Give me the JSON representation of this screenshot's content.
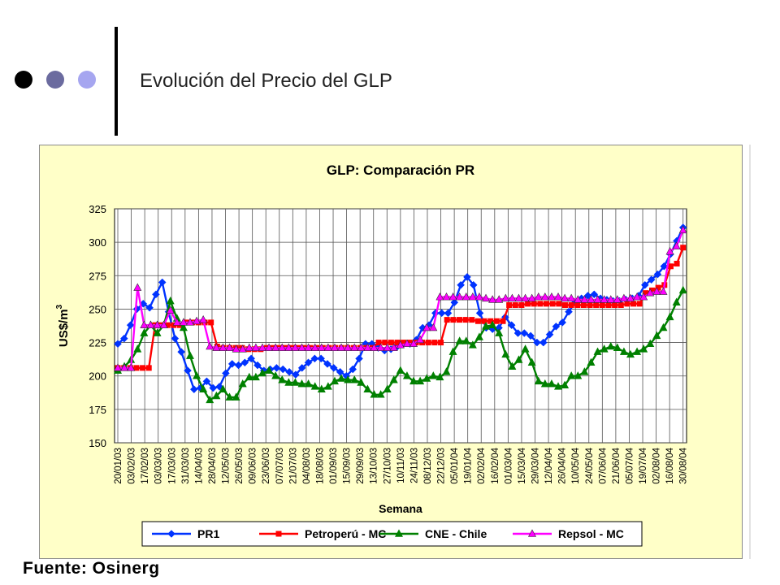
{
  "slide": {
    "title": "Evolución del Precio del GLP",
    "source": "Fuente: Osinerg",
    "bullet_colors": [
      "#000000",
      "#6b6b9f",
      "#a6a6f0"
    ]
  },
  "chart_data": {
    "type": "line",
    "title": "GLP: Comparación PR",
    "xlabel": "Semana",
    "ylabel": "US$/m",
    "ylabel_superscript": "3",
    "ylim": [
      150,
      325
    ],
    "yticks": [
      150,
      175,
      200,
      225,
      250,
      275,
      300,
      325
    ],
    "grid": true,
    "legend_position": "bottom",
    "plot_background": "#ffffc8",
    "x_tick_labels": [
      "20/01/03",
      "03/02/03",
      "17/02/03",
      "03/03/03",
      "17/03/03",
      "31/03/03",
      "14/04/03",
      "28/04/03",
      "12/05/03",
      "26/05/03",
      "09/06/03",
      "23/06/03",
      "07/07/03",
      "21/07/03",
      "04/08/03",
      "18/08/03",
      "01/09/03",
      "15/09/03",
      "29/09/03",
      "13/10/03",
      "27/10/03",
      "10/11/03",
      "24/11/03",
      "08/12/03",
      "22/12/03",
      "05/01/04",
      "19/01/04",
      "02/02/04",
      "16/02/04",
      "01/03/04",
      "15/03/04",
      "29/03/04",
      "12/04/04",
      "26/04/04",
      "10/05/04",
      "24/05/04",
      "07/06/04",
      "21/06/04",
      "05/07/04",
      "19/07/04",
      "02/08/04",
      "16/08/04",
      "30/08/04"
    ],
    "series": [
      {
        "name": "PR1",
        "color": "#0033ff",
        "marker": "diamond",
        "values": [
          224,
          228,
          238,
          250,
          254,
          251,
          261,
          270,
          248,
          228,
          218,
          204,
          190,
          191,
          196,
          191,
          192,
          202,
          209,
          208,
          210,
          213,
          208,
          204,
          205,
          206,
          205,
          203,
          201,
          206,
          210,
          213,
          213,
          209,
          206,
          203,
          200,
          205,
          213,
          224,
          224,
          221,
          219,
          220,
          222,
          224,
          224,
          227,
          236,
          238,
          247,
          247,
          247,
          255,
          268,
          274,
          268,
          247,
          236,
          235,
          236,
          244,
          238,
          232,
          232,
          230,
          225,
          225,
          231,
          237,
          240,
          248,
          255,
          258,
          260,
          261,
          258,
          257,
          256,
          256,
          257,
          258,
          260,
          268,
          272,
          276,
          282,
          291,
          301,
          311
        ]
      },
      {
        "name": "Petroperú - MC",
        "color": "#ff0000",
        "marker": "square",
        "values": [
          206,
          206,
          206,
          206,
          206,
          206,
          238,
          238,
          238,
          238,
          238,
          240,
          240,
          240,
          240,
          240,
          222,
          221,
          221,
          221,
          221,
          220,
          220,
          220,
          221,
          221,
          221,
          221,
          221,
          221,
          221,
          221,
          221,
          221,
          221,
          221,
          221,
          221,
          221,
          221,
          221,
          221,
          225,
          225,
          225,
          225,
          225,
          225,
          225,
          225,
          225,
          225,
          225,
          242,
          242,
          242,
          242,
          242,
          241,
          241,
          241,
          241,
          241,
          253,
          253,
          253,
          254,
          254,
          254,
          254,
          254,
          254,
          253,
          253,
          253,
          253,
          253,
          253,
          253,
          253,
          253,
          253,
          254,
          254,
          254,
          262,
          264,
          266,
          268,
          282,
          284,
          296
        ]
      },
      {
        "name": "CNE - Chile",
        "color": "#008000",
        "marker": "triangle",
        "values": [
          204,
          207,
          212,
          220,
          232,
          238,
          232,
          238,
          256,
          243,
          236,
          215,
          200,
          190,
          182,
          185,
          190,
          184,
          184,
          194,
          199,
          199,
          202,
          204,
          200,
          197,
          195,
          195,
          194,
          194,
          192,
          190,
          192,
          196,
          198,
          197,
          197,
          195,
          190,
          186,
          186,
          190,
          197,
          204,
          200,
          196,
          196,
          198,
          200,
          199,
          203,
          218,
          226,
          226,
          223,
          229,
          237,
          238,
          232,
          216,
          207,
          212,
          220,
          210,
          196,
          194,
          194,
          192,
          193,
          200,
          200,
          203,
          210,
          218,
          220,
          222,
          221,
          218,
          216,
          218,
          220,
          224,
          230,
          236,
          244,
          255,
          264
        ]
      },
      {
        "name": "Repsol - MC",
        "color": "#ff00ff",
        "marker": "triangle",
        "values": [
          206,
          206,
          206,
          266,
          238,
          238,
          238,
          238,
          249,
          240,
          240,
          240,
          241,
          242,
          222,
          221,
          221,
          221,
          220,
          220,
          221,
          221,
          221,
          221,
          221,
          221,
          221,
          221,
          221,
          221,
          221,
          221,
          221,
          221,
          221,
          221,
          221,
          221,
          221,
          221,
          221,
          221,
          221,
          223,
          224,
          224,
          227,
          236,
          236,
          259,
          259,
          259,
          259,
          259,
          259,
          259,
          258,
          257,
          257,
          258,
          258,
          258,
          258,
          258,
          259,
          259,
          259,
          259,
          258,
          258,
          257,
          257,
          257,
          257,
          257,
          257,
          257,
          258,
          258,
          259,
          259,
          262,
          263,
          263,
          293,
          297,
          309
        ]
      }
    ]
  }
}
